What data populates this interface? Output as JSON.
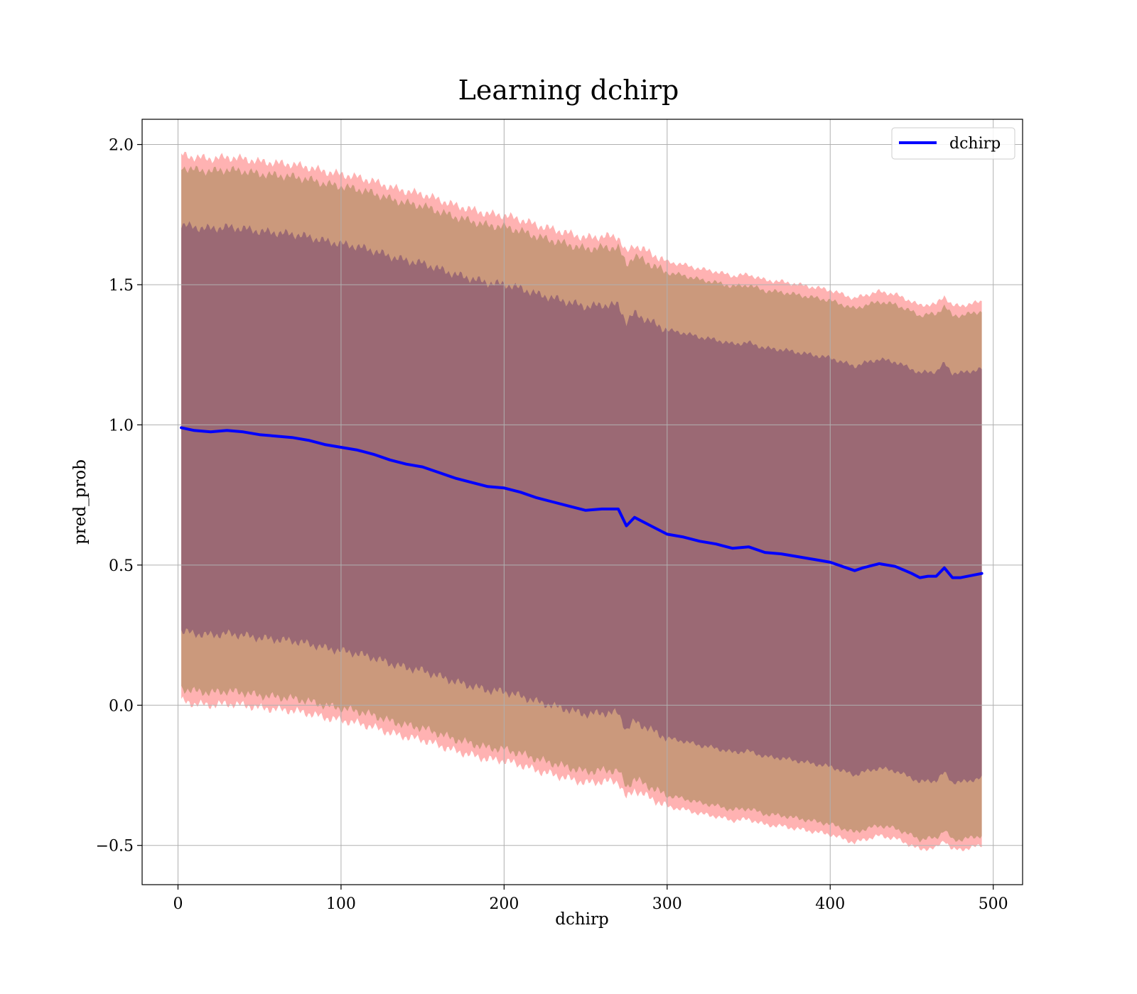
{
  "chart_data": {
    "type": "line",
    "title": "Learning dchirp",
    "xlabel": "dchirp",
    "ylabel": "pred_prob",
    "xlim": [
      -22,
      518
    ],
    "ylim": [
      -0.64,
      2.09
    ],
    "xticks": [
      0,
      100,
      200,
      300,
      400,
      500
    ],
    "yticks": [
      -0.5,
      0.0,
      0.5,
      1.0,
      1.5,
      2.0
    ],
    "xtick_labels": [
      "0",
      "100",
      "200",
      "300",
      "400",
      "500"
    ],
    "ytick_labels": [
      "−0.5",
      "0.0",
      "0.5",
      "1.0",
      "1.5",
      "2.0"
    ],
    "grid": true,
    "legend": {
      "position": "top-right",
      "entries": [
        "dchirp"
      ]
    },
    "colors": {
      "line": "#0000ff",
      "band_outer": "#ff0000",
      "band_middle": "#8b7a3a",
      "band_inner": "#6b3a6b"
    },
    "series": [
      {
        "name": "dchirp",
        "x": [
          2,
          10,
          20,
          30,
          40,
          50,
          60,
          70,
          80,
          90,
          100,
          110,
          120,
          130,
          140,
          150,
          160,
          170,
          180,
          190,
          200,
          210,
          220,
          230,
          240,
          250,
          260,
          270,
          275,
          280,
          290,
          300,
          310,
          320,
          330,
          340,
          350,
          360,
          370,
          380,
          390,
          400,
          410,
          415,
          420,
          430,
          440,
          450,
          455,
          460,
          465,
          470,
          475,
          480,
          493
        ],
        "y": [
          0.99,
          0.98,
          0.975,
          0.98,
          0.975,
          0.965,
          0.96,
          0.955,
          0.945,
          0.93,
          0.92,
          0.91,
          0.895,
          0.875,
          0.86,
          0.85,
          0.83,
          0.81,
          0.795,
          0.78,
          0.775,
          0.76,
          0.74,
          0.725,
          0.71,
          0.695,
          0.7,
          0.7,
          0.64,
          0.67,
          0.64,
          0.61,
          0.6,
          0.585,
          0.575,
          0.56,
          0.565,
          0.545,
          0.54,
          0.53,
          0.52,
          0.51,
          0.49,
          0.48,
          0.49,
          0.505,
          0.495,
          0.47,
          0.455,
          0.46,
          0.46,
          0.49,
          0.455,
          0.455,
          0.47
        ]
      }
    ],
    "bands": [
      {
        "name": "outer",
        "x": [
          2,
          493
        ],
        "half_width": [
          0.975,
          0.97
        ]
      },
      {
        "name": "middle",
        "x": [
          2,
          493
        ],
        "half_width": [
          0.93,
          0.935
        ]
      },
      {
        "name": "inner",
        "x": [
          2,
          493
        ],
        "half_width": [
          0.725,
          0.73
        ]
      }
    ]
  }
}
